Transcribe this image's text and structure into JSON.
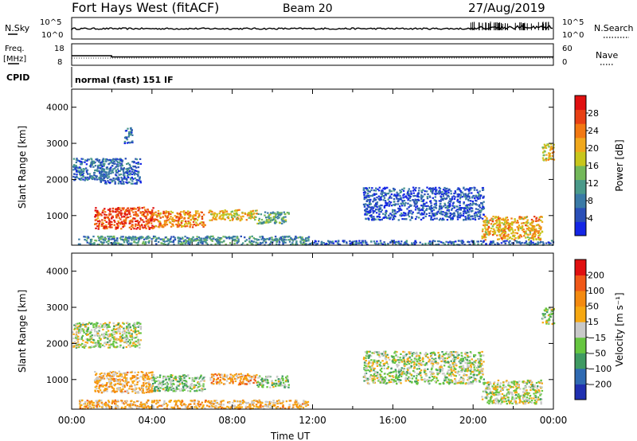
{
  "header": {
    "radar": "Fort Hays West (fitACF)",
    "beam": "Beam 20",
    "date": "27/Aug/2019"
  },
  "noise_panel": {
    "left_label": "N.Sky",
    "right_label": "N.Search",
    "tick_top": "10^5",
    "tick_bottom": "10^0"
  },
  "freq_panel": {
    "left_label_1": "Freq.",
    "left_label_2": "[MHz]",
    "right_label": "Nave",
    "left_ticks": [
      "18",
      "8"
    ],
    "right_ticks": [
      "60",
      "0"
    ]
  },
  "cpid": {
    "label": "CPID",
    "value": "normal (fast) 151 IF"
  },
  "chart_data": [
    {
      "type": "heatmap",
      "name": "power",
      "ylabel": "Slant Range [km]",
      "ylim": [
        180,
        4500
      ],
      "yticks": [
        1000,
        2000,
        3000,
        4000
      ],
      "xlim_hours": [
        0,
        24
      ],
      "colorbar": {
        "label": "Power [dB]",
        "range": [
          0,
          32
        ],
        "ticks": [
          "4",
          "8",
          "12",
          "16",
          "20",
          "24",
          "28"
        ],
        "colors": [
          "#1426e6",
          "#2a4fb8",
          "#3a7aa6",
          "#4a9a8a",
          "#73b85a",
          "#c8c61c",
          "#f0a81c",
          "#f27812",
          "#e84014",
          "#e01010"
        ]
      },
      "regions": [
        {
          "t0": 1.1,
          "t1": 4.1,
          "r0": 650,
          "r1": 1250,
          "level": 0.85
        },
        {
          "t0": 4.1,
          "t1": 6.6,
          "r0": 700,
          "r1": 1150,
          "level": 0.72
        },
        {
          "t0": 6.8,
          "t1": 9.2,
          "r0": 880,
          "r1": 1180,
          "level": 0.6
        },
        {
          "t0": 9.2,
          "t1": 10.8,
          "r0": 800,
          "r1": 1120,
          "level": 0.38
        },
        {
          "t0": 0.0,
          "t1": 1.6,
          "r0": 2000,
          "r1": 2600,
          "level": 0.22
        },
        {
          "t0": 1.4,
          "t1": 3.4,
          "r0": 1900,
          "r1": 2600,
          "level": 0.2
        },
        {
          "t0": 2.6,
          "t1": 3.0,
          "r0": 3000,
          "r1": 3450,
          "level": 0.2
        },
        {
          "t0": 0.3,
          "t1": 11.8,
          "r0": 210,
          "r1": 450,
          "level": 0.3
        },
        {
          "t0": 11.8,
          "t1": 24,
          "r0": 210,
          "r1": 330,
          "level": 0.2
        },
        {
          "t0": 14.5,
          "t1": 20.5,
          "r0": 900,
          "r1": 1800,
          "level": 0.15
        },
        {
          "t0": 20.4,
          "t1": 23.4,
          "r0": 350,
          "r1": 1000,
          "level": 0.66
        },
        {
          "t0": 23.4,
          "t1": 24.0,
          "r0": 2550,
          "r1": 3000,
          "level": 0.6
        }
      ]
    },
    {
      "type": "heatmap",
      "name": "velocity",
      "ylabel": "Slant Range [km]",
      "ylim": [
        180,
        4500
      ],
      "yticks": [
        1000,
        2000,
        3000,
        4000
      ],
      "xlabel": "Time UT",
      "xticks": [
        "00:00",
        "04:00",
        "08:00",
        "12:00",
        "16:00",
        "20:00",
        "00:00"
      ],
      "xlim_hours": [
        0,
        24
      ],
      "colorbar": {
        "label": "Velocity [m s⁻¹]",
        "ticks": [
          "200",
          "100",
          "50",
          "15",
          "−15",
          "−50",
          "−100",
          "−200"
        ],
        "colors": [
          "#2030b0",
          "#2f6ab2",
          "#3f9a62",
          "#66c640",
          "#c9c9c9",
          "#f6a812",
          "#f48a10",
          "#f05818",
          "#e01010"
        ]
      },
      "regions": [
        {
          "t0": 1.1,
          "t1": 4.0,
          "r0": 650,
          "r1": 1250,
          "level": 0.62
        },
        {
          "t0": 4.0,
          "t1": 6.6,
          "r0": 700,
          "r1": 1150,
          "level": 0.4
        },
        {
          "t0": 6.8,
          "t1": 9.2,
          "r0": 880,
          "r1": 1180,
          "level": 0.66
        },
        {
          "t0": 9.2,
          "t1": 10.8,
          "r0": 800,
          "r1": 1120,
          "level": 0.42
        },
        {
          "t0": 0.0,
          "t1": 3.4,
          "r0": 1900,
          "r1": 2600,
          "level": 0.46
        },
        {
          "t0": 0.3,
          "t1": 11.8,
          "r0": 210,
          "r1": 450,
          "level": 0.62
        },
        {
          "t0": 14.5,
          "t1": 20.5,
          "r0": 900,
          "r1": 1800,
          "level": 0.46
        },
        {
          "t0": 20.4,
          "t1": 23.4,
          "r0": 350,
          "r1": 1000,
          "level": 0.48
        },
        {
          "t0": 23.4,
          "t1": 24.0,
          "r0": 2550,
          "r1": 3000,
          "level": 0.48
        }
      ]
    }
  ]
}
